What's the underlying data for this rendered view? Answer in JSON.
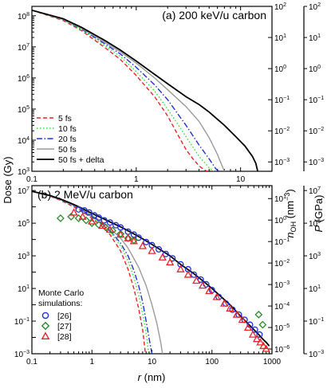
{
  "chart_data": [
    {
      "type": "line",
      "title": "(a) 200 keV/u carbon",
      "x_scale": "log",
      "y_scale": "log",
      "xlim": [
        0.1,
        20
      ],
      "ylim": [
        1000,
        200000000
      ],
      "y2lim": [
        0.0005,
        100
      ],
      "y3lim": [
        0.0005,
        100
      ],
      "ylabel": "Dose (Gy)",
      "xticks": [
        "0.1",
        "1",
        "10"
      ],
      "yticks": [
        "10^3",
        "10^4",
        "10^5",
        "10^6",
        "10^7",
        "10^8"
      ],
      "y2ticks": [
        "10^-3",
        "10^-2",
        "10^-1",
        "10^0",
        "10^1",
        "10^2"
      ],
      "y3ticks": [
        "10^-3",
        "10^-2",
        "10^-1",
        "10^0",
        "10^1",
        "10^2"
      ],
      "legend_position": "lower-left",
      "series": [
        {
          "name": "5 fs",
          "color": "#e8242b",
          "dash": "dashed",
          "x": [
            0.1,
            0.2,
            0.3,
            0.5,
            0.7,
            1.0,
            1.5,
            2.0,
            2.5,
            3.0,
            3.5,
            4.0,
            4.5,
            4.8
          ],
          "y": [
            150000000,
            70000000,
            33000000,
            9500000,
            4000000,
            1200000,
            250000,
            60000,
            15000,
            5000,
            2500,
            1500,
            1100,
            1000
          ]
        },
        {
          "name": "10 fs",
          "color": "#33dd33",
          "dash": "dotted",
          "x": [
            0.1,
            0.2,
            0.3,
            0.5,
            0.7,
            1.0,
            1.5,
            2.0,
            3.0,
            4.0,
            5.0,
            5.5
          ],
          "y": [
            150000000,
            72000000,
            35000000,
            11000000,
            5000000,
            1600000,
            380000,
            100000,
            13000,
            3000,
            1300,
            1000
          ]
        },
        {
          "name": "20 fs",
          "color": "#2030d0",
          "dash": "dashdot",
          "x": [
            0.1,
            0.2,
            0.3,
            0.5,
            0.7,
            1.0,
            1.5,
            2.0,
            3.0,
            4.0,
            5.0,
            5.8,
            6.2
          ],
          "y": [
            150000000,
            75000000,
            37000000,
            12500000,
            6000000,
            2200000,
            600000,
            200000,
            30000,
            7000,
            2500,
            1200,
            1000
          ]
        },
        {
          "name": "50 fs",
          "color": "#999999",
          "dash": "solid",
          "x": [
            0.1,
            0.2,
            0.3,
            0.5,
            0.7,
            1.0,
            1.5,
            2.0,
            3.0,
            4.0,
            5.0,
            6.0,
            6.5,
            7.0
          ],
          "y": [
            150000000,
            76000000,
            39000000,
            14000000,
            7000000,
            3000000,
            1000000,
            420000,
            120000,
            40000,
            12000,
            3500,
            1800,
            1000
          ]
        },
        {
          "name": "50 fs + delta",
          "color": "#000000",
          "dash": "solid",
          "x": [
            0.1,
            0.2,
            0.3,
            0.5,
            0.7,
            1.0,
            1.5,
            2.0,
            3.0,
            4.0,
            5.0,
            7.0,
            9.0,
            11.0,
            13.0,
            14.0,
            14.6
          ],
          "y": [
            150000000,
            80000000,
            42000000,
            16000000,
            8000000,
            3500000,
            1300000,
            650000,
            250000,
            140000,
            80000,
            30000,
            13000,
            6500,
            3000,
            1800,
            1000
          ]
        }
      ]
    },
    {
      "type": "line",
      "title": "(b) 2 MeV/u carbon",
      "x_scale": "log",
      "y_scale": "log",
      "xlim": [
        0.1,
        1000
      ],
      "ylim": [
        0.001,
        20000000
      ],
      "y2lim": [
        6e-07,
        40
      ],
      "y3lim": [
        0.001,
        20000000
      ],
      "xlabel": "r (nm)",
      "ylabel": "Dose (Gy)",
      "y2label": "n_OH (nm^-3)",
      "y3label": "P (GPa)",
      "xticks": [
        "0.1",
        "1",
        "10",
        "100",
        "1000"
      ],
      "yticks": [
        "10^-3",
        "10^-1",
        "10^1",
        "10^3",
        "10^5",
        "10^7"
      ],
      "y2ticks": [
        "10^-6",
        "10^-5",
        "10^-4",
        "10^-3",
        "10^-2",
        "10^-1",
        "10^0",
        "10^1"
      ],
      "y3ticks": [
        "10^-3",
        "10^-1",
        "10^1",
        "10^3",
        "10^5",
        "10^7"
      ],
      "legend_title": "Monte Carlo simulations:",
      "legend_position": "lower-left",
      "series": [
        {
          "name": "5 fs",
          "color": "#e8242b",
          "dash": "dashed",
          "x": [
            0.1,
            0.2,
            0.3,
            0.5,
            0.7,
            1.0,
            1.5,
            2.0,
            3.0,
            4.0,
            5.0,
            6.0,
            7.0,
            7.8
          ],
          "y": [
            9000000,
            4500000,
            2500000,
            1000000,
            500000,
            200000,
            60000,
            20000,
            2000,
            150,
            10,
            0.6,
            0.03,
            0.001
          ]
        },
        {
          "name": "10 fs",
          "color": "#33dd33",
          "dash": "dotted",
          "x": [
            0.1,
            0.2,
            0.3,
            0.5,
            0.7,
            1.0,
            1.5,
            2.0,
            3.0,
            4.0,
            5.0,
            6.0,
            7.0,
            8.0,
            8.8
          ],
          "y": [
            9000000,
            4600000,
            2600000,
            1100000,
            560000,
            230000,
            75000,
            28000,
            4000,
            500,
            50,
            4,
            0.3,
            0.02,
            0.001
          ]
        },
        {
          "name": "20 fs",
          "color": "#2030d0",
          "dash": "dashdot",
          "x": [
            0.1,
            0.2,
            0.3,
            0.5,
            0.7,
            1.0,
            1.5,
            2.0,
            3.0,
            4.0,
            5.0,
            6.0,
            7.0,
            8.0,
            9.0,
            10.0
          ],
          "y": [
            9000000,
            4700000,
            2700000,
            1200000,
            620000,
            260000,
            90000,
            36000,
            6000,
            1000,
            130,
            15,
            1.5,
            0.1,
            0.008,
            0.001
          ]
        },
        {
          "name": "50 fs",
          "color": "#999999",
          "dash": "solid",
          "x": [
            0.1,
            0.2,
            0.3,
            0.5,
            0.7,
            1.0,
            1.5,
            2.0,
            3.0,
            4.0,
            6.0,
            8.0,
            10.0,
            12.0,
            14.0,
            15.0
          ],
          "y": [
            9000000,
            4800000,
            2800000,
            1300000,
            700000,
            300000,
            110000,
            50000,
            12000,
            3000,
            200,
            15,
            1,
            0.08,
            0.005,
            0.001
          ]
        },
        {
          "name": "50 fs + delta",
          "color": "#000000",
          "dash": "solid",
          "x": [
            0.1,
            0.2,
            0.3,
            0.5,
            0.7,
            1.0,
            1.5,
            2.0,
            3.0,
            5.0,
            7.0,
            10.0,
            20.0,
            30.0,
            50.0,
            70.0,
            100.0,
            200.0,
            300.0,
            500.0,
            600.0,
            700.0,
            800.0,
            900.0
          ],
          "y": [
            9000000,
            5000000,
            3000000,
            1400000,
            780000,
            400000,
            200000,
            120000,
            60000,
            22000,
            11000,
            5000,
            1000,
            300,
            80,
            30,
            10,
            1,
            0.2,
            0.03,
            0.015,
            0.008,
            0.005,
            0.003
          ]
        },
        {
          "name": "[26]",
          "color": "#2030d0",
          "marker": "circle",
          "x": [
            0.6,
            0.75,
            0.9,
            1.1,
            1.3,
            1.6,
            2.0,
            2.5,
            3.0,
            4.0,
            5.0,
            6.0,
            8.0,
            10.0,
            13.0,
            17.0,
            22.0,
            30.0,
            40.0,
            50.0,
            65.0,
            80.0,
            100.0,
            130.0,
            170.0,
            220.0,
            280.0,
            350.0,
            430.0,
            520.0,
            620.0
          ],
          "y": [
            700000,
            600000,
            450000,
            300000,
            220000,
            150000,
            110000,
            75000,
            55000,
            30000,
            20000,
            13000,
            7000,
            4500,
            2500,
            1300,
            700,
            300,
            150,
            70,
            35,
            18,
            8,
            3,
            1.2,
            0.5,
            0.25,
            0.12,
            0.06,
            0.03,
            0.015
          ]
        },
        {
          "name": "[27]",
          "color": "#2a8a2a",
          "marker": "diamond",
          "x": [
            0.3,
            0.45,
            0.6,
            0.8,
            1.0,
            1.3,
            1.7,
            2.2,
            3.0,
            4.0,
            5.0,
            600.0,
            700.0
          ],
          "y": [
            200000,
            250000,
            200000,
            150000,
            100000,
            80000,
            55000,
            35000,
            22000,
            12000,
            9000,
            0.25,
            0.06
          ]
        },
        {
          "name": "[28]",
          "color": "#e8242b",
          "marker": "triangle",
          "x": [
            0.5,
            0.7,
            1.0,
            1.5,
            2.0,
            3.0,
            4.0,
            5.0,
            7.0,
            10.0,
            15.0,
            20.0,
            30.0,
            40.0,
            55.0,
            70.0,
            90.0,
            120.0,
            160.0,
            200.0,
            260.0,
            320.0,
            400.0,
            480.0,
            560.0,
            640.0,
            720.0,
            800.0
          ],
          "y": [
            450000,
            250000,
            130000,
            70000,
            40000,
            20000,
            12000,
            8000,
            4000,
            2000,
            800,
            400,
            150,
            70,
            30,
            15,
            7,
            3,
            1.2,
            0.6,
            0.25,
            0.12,
            0.04,
            0.015,
            0.008,
            0.005,
            0.003,
            0.002
          ]
        }
      ]
    }
  ]
}
